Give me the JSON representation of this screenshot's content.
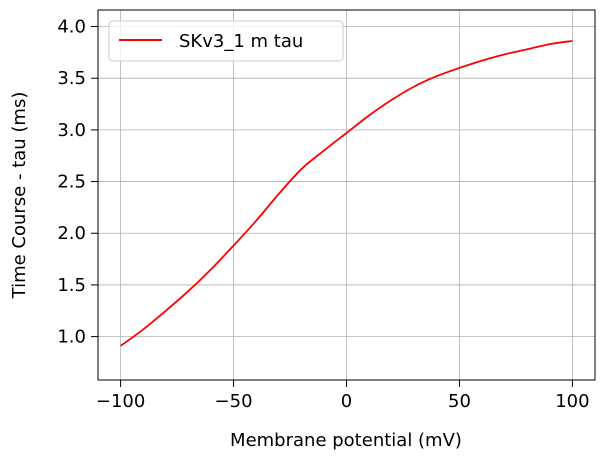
{
  "chart_data": {
    "type": "line",
    "xlabel": "Membrane potential (mV)",
    "ylabel": "Time Course - tau (ms)",
    "xlim": [
      -110,
      110
    ],
    "ylim": [
      0.58,
      4.16
    ],
    "xticks": [
      -100,
      -50,
      0,
      50,
      100
    ],
    "xtick_labels": [
      "−100",
      "−50",
      "0",
      "50",
      "100"
    ],
    "yticks": [
      1.0,
      1.5,
      2.0,
      2.5,
      3.0,
      3.5,
      4.0
    ],
    "ytick_labels": [
      "1.0",
      "1.5",
      "2.0",
      "2.5",
      "3.0",
      "3.5",
      "4.0"
    ],
    "grid": true,
    "legend_position": "upper-left",
    "series": [
      {
        "name": "SKv3_1 m tau",
        "color": "#ff0000",
        "x": [
          -100,
          -90,
          -80,
          -70,
          -60,
          -50,
          -40,
          -30,
          -20,
          -10,
          0,
          10,
          20,
          30,
          40,
          50,
          60,
          70,
          80,
          90,
          100
        ],
        "y": [
          0.91,
          1.07,
          1.25,
          1.44,
          1.65,
          1.88,
          2.12,
          2.38,
          2.62,
          2.8,
          2.97,
          3.14,
          3.29,
          3.42,
          3.52,
          3.6,
          3.67,
          3.73,
          3.78,
          3.83,
          3.86
        ]
      }
    ]
  }
}
